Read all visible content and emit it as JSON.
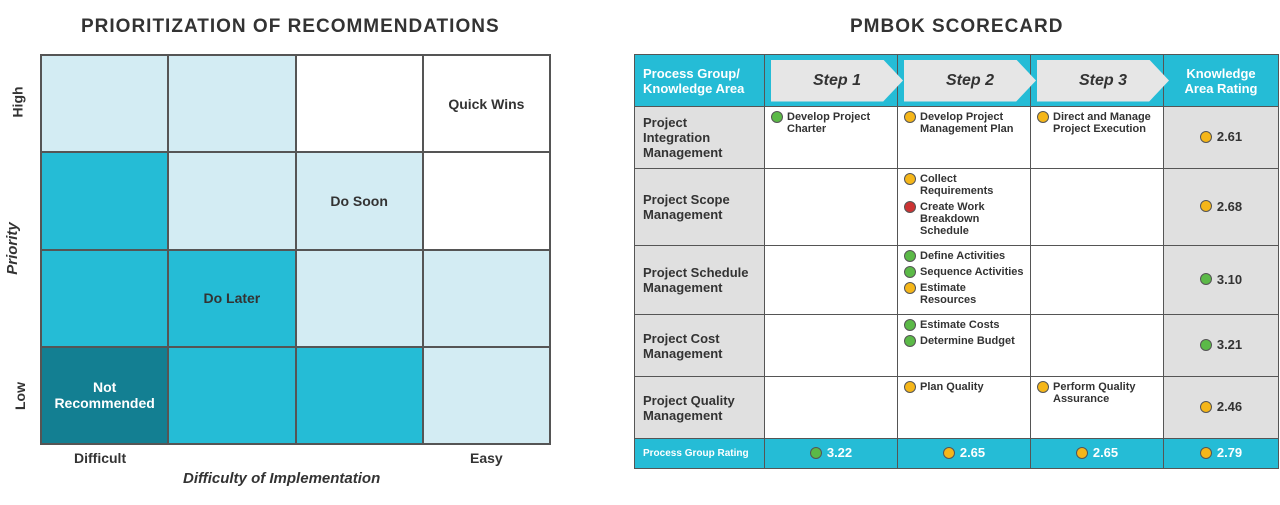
{
  "colors": {
    "green": "#5bb947",
    "yellow": "#f5b619",
    "red": "#cc3333",
    "light": "#d3ecf3",
    "mid": "#25bcd6",
    "dark": "#137f92"
  },
  "matrix": {
    "title": "PRIORITIZATION OF RECOMMENDATIONS",
    "y_axis": "Priority",
    "y_high": "High",
    "y_low": "Low",
    "x_axis": "Difficulty of Implementation",
    "x_left": "Difficult",
    "x_right": "Easy",
    "cells": [
      {
        "shade": "L",
        "label": ""
      },
      {
        "shade": "L",
        "label": ""
      },
      {
        "shade": "W",
        "label": ""
      },
      {
        "shade": "W",
        "label": "Quick Wins"
      },
      {
        "shade": "M",
        "label": ""
      },
      {
        "shade": "L",
        "label": ""
      },
      {
        "shade": "L",
        "label": "Do Soon"
      },
      {
        "shade": "W",
        "label": ""
      },
      {
        "shade": "M",
        "label": ""
      },
      {
        "shade": "M",
        "label": "Do Later"
      },
      {
        "shade": "L",
        "label": ""
      },
      {
        "shade": "L",
        "label": ""
      },
      {
        "shade": "D",
        "label": "Not Recommended"
      },
      {
        "shade": "M",
        "label": ""
      },
      {
        "shade": "M",
        "label": ""
      },
      {
        "shade": "L",
        "label": ""
      }
    ]
  },
  "scorecard": {
    "title": "PMBOK SCORECARD",
    "header": {
      "area": "Process Group/ Knowledge Area",
      "step1": "Step 1",
      "step2": "Step 2",
      "step3": "Step 3",
      "rating": "Knowledge Area Rating"
    },
    "rows": [
      {
        "area": "Project Integration Management",
        "step1": [
          {
            "s": "green",
            "t": "Develop Project Charter"
          }
        ],
        "step2": [
          {
            "s": "yellow",
            "t": "Develop Project Management Plan"
          }
        ],
        "step3": [
          {
            "s": "yellow",
            "t": "Direct and Manage Project Execution"
          }
        ],
        "rating": {
          "s": "yellow",
          "v": "2.61"
        }
      },
      {
        "area": "Project Scope Management",
        "step1": [],
        "step2": [
          {
            "s": "yellow",
            "t": "Collect Requirements"
          },
          {
            "s": "red",
            "t": "Create Work Breakdown Schedule"
          }
        ],
        "step3": [],
        "rating": {
          "s": "yellow",
          "v": "2.68"
        }
      },
      {
        "area": "Project Schedule Management",
        "step1": [],
        "step2": [
          {
            "s": "green",
            "t": "Define Activities"
          },
          {
            "s": "green",
            "t": "Sequence Activities"
          },
          {
            "s": "yellow",
            "t": "Estimate Resources"
          }
        ],
        "step3": [],
        "rating": {
          "s": "green",
          "v": "3.10"
        }
      },
      {
        "area": "Project Cost Management",
        "step1": [],
        "step2": [
          {
            "s": "green",
            "t": "Estimate Costs"
          },
          {
            "s": "green",
            "t": "Determine Budget"
          }
        ],
        "step3": [],
        "rating": {
          "s": "green",
          "v": "3.21"
        }
      },
      {
        "area": "Project Quality Management",
        "step1": [],
        "step2": [
          {
            "s": "yellow",
            "t": "Plan Quality"
          }
        ],
        "step3": [
          {
            "s": "yellow",
            "t": "Perform Quality Assurance"
          }
        ],
        "rating": {
          "s": "yellow",
          "v": "2.46"
        }
      }
    ],
    "footer": {
      "label": "Process Group Rating",
      "values": [
        {
          "s": "green",
          "v": "3.22"
        },
        {
          "s": "yellow",
          "v": "2.65"
        },
        {
          "s": "yellow",
          "v": "2.65"
        },
        {
          "s": "yellow",
          "v": "2.79"
        }
      ]
    }
  }
}
